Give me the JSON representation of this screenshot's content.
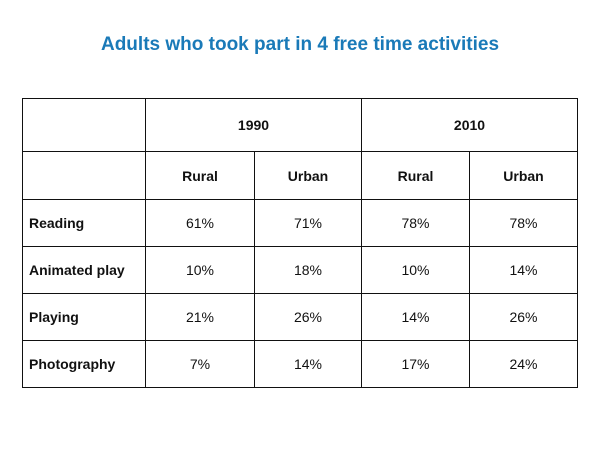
{
  "chart_data": {
    "type": "table",
    "title": "Adults who took part in 4 free time activities",
    "title_color": "#1a7ab8",
    "groups": [
      "1990",
      "2010"
    ],
    "subcolumns": [
      "Rural",
      "Urban",
      "Rural",
      "Urban"
    ],
    "rows": [
      {
        "label": "Reading",
        "values": [
          "61%",
          "71%",
          "78%",
          "78%"
        ]
      },
      {
        "label": "Animated play",
        "values": [
          "10%",
          "18%",
          "10%",
          "14%"
        ]
      },
      {
        "label": "Playing",
        "values": [
          "21%",
          "26%",
          "14%",
          "26%"
        ]
      },
      {
        "label": "Photography",
        "values": [
          "7%",
          "14%",
          "17%",
          "24%"
        ]
      }
    ]
  }
}
